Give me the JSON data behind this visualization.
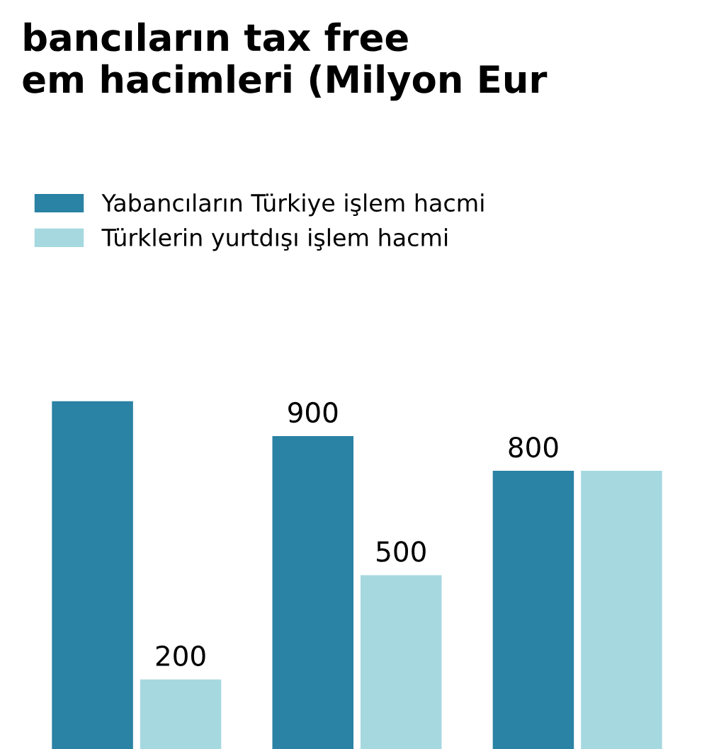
{
  "chart_data": {
    "type": "bar",
    "title": "bancıların tax free\nem hacimleri (Milyon Eur",
    "categories": [
      null,
      null,
      null
    ],
    "series": [
      {
        "name": "Yabancıların Türkiye işlem hacmi",
        "color": "#2a82a4",
        "values": [
          1000,
          900,
          800
        ],
        "value_labels": [
          null,
          "900",
          "800"
        ]
      },
      {
        "name": "Türklerin yurtdışı işlem hacmi",
        "color": "#a6d8e0",
        "values": [
          200,
          500,
          800
        ],
        "value_labels": [
          "200",
          "500",
          null
        ]
      }
    ],
    "legend": "top left",
    "grid": false
  }
}
